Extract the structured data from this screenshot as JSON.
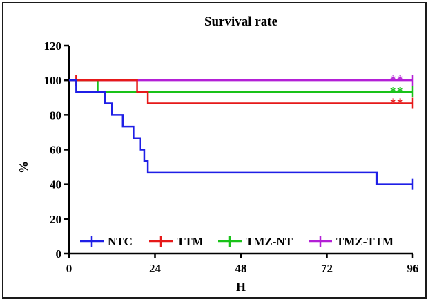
{
  "chart_data": {
    "type": "line",
    "step": true,
    "title": "Survival rate",
    "xlabel": "H",
    "ylabel": "%",
    "xlim": [
      0,
      96
    ],
    "ylim": [
      0,
      120
    ],
    "x_ticks": [
      0,
      24,
      48,
      72,
      96
    ],
    "y_ticks": [
      0,
      20,
      40,
      60,
      80,
      100,
      120
    ],
    "x_tick_labels": [
      "0",
      "24",
      "48",
      "72",
      "96"
    ],
    "y_tick_labels": [
      "0",
      "20",
      "40",
      "60",
      "80",
      "100",
      "120"
    ],
    "legend_position": "bottom-left",
    "series": [
      {
        "name": "NTC",
        "color": "#1f1fe6",
        "points": [
          [
            0,
            100
          ],
          [
            2,
            93.3
          ],
          [
            10,
            86.7
          ],
          [
            12,
            80
          ],
          [
            15,
            73.3
          ],
          [
            18,
            66.7
          ],
          [
            20,
            60
          ],
          [
            21,
            53.3
          ],
          [
            22,
            46.7
          ],
          [
            86,
            40
          ],
          [
            96,
            40
          ]
        ],
        "censor_x": [
          96
        ]
      },
      {
        "name": "TTM",
        "color": "#e61919",
        "points": [
          [
            0,
            100
          ],
          [
            19,
            93.3
          ],
          [
            22,
            86.7
          ],
          [
            96,
            86.7
          ]
        ],
        "censor_x": [
          2,
          96
        ]
      },
      {
        "name": "TMZ-NT",
        "color": "#19c219",
        "points": [
          [
            0,
            100
          ],
          [
            8,
            93.3
          ],
          [
            96,
            93.3
          ]
        ],
        "censor_x": [
          96
        ]
      },
      {
        "name": "TMZ-TTM",
        "color": "#b31fd6",
        "points": [
          [
            0,
            100
          ],
          [
            96,
            100
          ]
        ],
        "censor_x": [
          96
        ]
      }
    ],
    "annotations": [
      {
        "text": "**",
        "series": "TMZ-TTM",
        "x": 91.5,
        "y": 100
      },
      {
        "text": "**",
        "series": "TMZ-NT",
        "x": 91.5,
        "y": 93.3
      },
      {
        "text": "**",
        "series": "TTM",
        "x": 91.5,
        "y": 86.7
      }
    ]
  }
}
